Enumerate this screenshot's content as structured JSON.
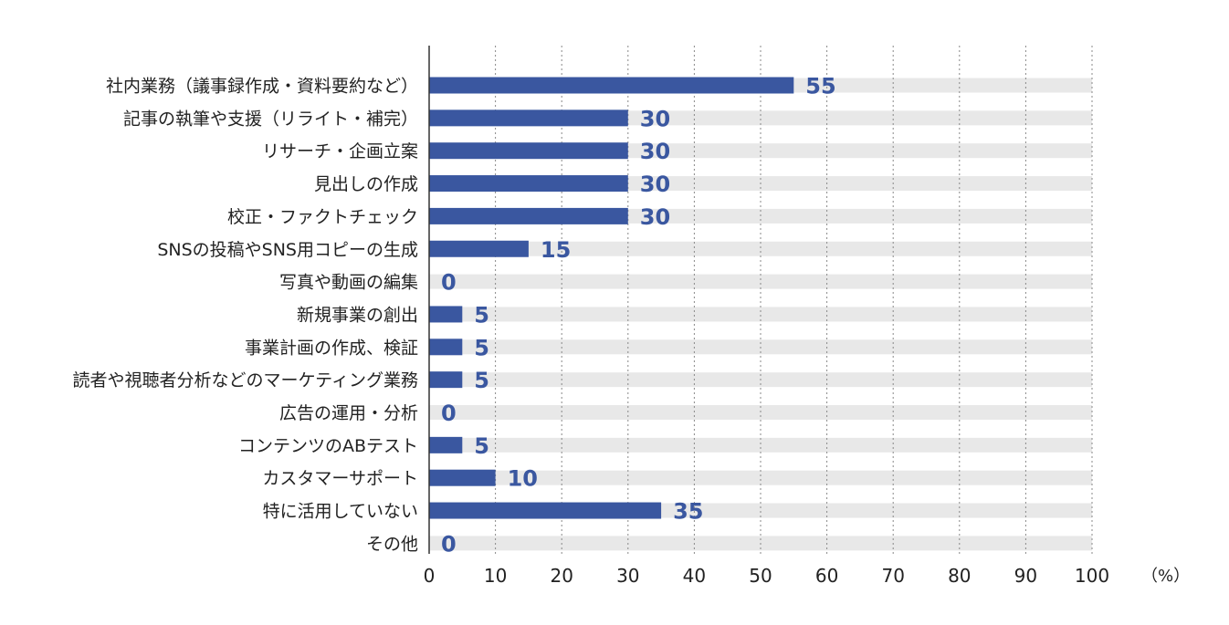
{
  "chart_data": {
    "type": "bar",
    "orientation": "horizontal",
    "categories": [
      "社内業務（議事録作成・資料要約など）",
      "記事の執筆や支援（リライト・補完）",
      "リサーチ・企画立案",
      "見出しの作成",
      "校正・ファクトチェック",
      "SNSの投稿やSNS用コピーの生成",
      "写真や動画の編集",
      "新規事業の創出",
      "事業計画の作成、検証",
      "読者や視聴者分析などのマーケティング業務",
      "広告の運用・分析",
      "コンテンツのABテスト",
      "カスタマーサポート",
      "特に活用していない",
      "その他"
    ],
    "values": [
      55,
      30,
      30,
      30,
      30,
      15,
      0,
      5,
      5,
      5,
      0,
      5,
      10,
      35,
      0
    ],
    "value_labels": [
      "55",
      "30",
      "30",
      "30",
      "30",
      "15",
      "0",
      "5",
      "5",
      "5",
      "0",
      "5",
      "10",
      "35",
      "0"
    ],
    "xlim": [
      0,
      100
    ],
    "xticks": [
      "0",
      "10",
      "20",
      "30",
      "40",
      "50",
      "60",
      "70",
      "80",
      "90",
      "100"
    ],
    "unit": "（%）",
    "grid": "vertical dotted",
    "colors": {
      "bar": "#3a57a0",
      "track": "#e8e8e8",
      "value_text": "#3a57a0",
      "grid": "#888888",
      "axis": "#333333"
    }
  }
}
